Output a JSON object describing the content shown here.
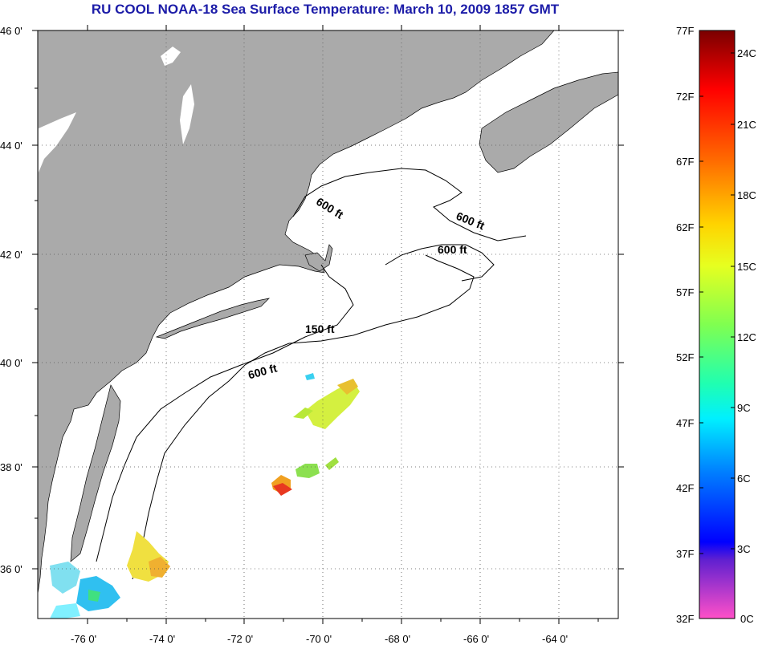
{
  "title": "RU COOL  NOAA-18  Sea Surface Temperature:  March 10, 2009 1857 GMT",
  "map": {
    "lat_labels": [
      "46 0'",
      "44 0'",
      "42 0'",
      "40 0'",
      "38 0'",
      "36 0'"
    ],
    "lon_labels": [
      "-76 0'",
      "-74 0'",
      "-72 0'",
      "-70 0'",
      "-68 0'",
      "-66 0'",
      "-64 0'"
    ],
    "contour_labels": [
      "600 ft",
      "600 ft",
      "600 ft",
      "150 ft",
      "600 ft"
    ],
    "colors": {
      "land": "#aaaaaa",
      "ocean": "#ffffff",
      "grid": "#555555"
    }
  },
  "colorbar": {
    "f_labels": [
      "77F",
      "72F",
      "67F",
      "62F",
      "57F",
      "52F",
      "47F",
      "42F",
      "37F",
      "32F"
    ],
    "c_labels": [
      "24C",
      "21C",
      "18C",
      "15C",
      "12C",
      "9C",
      "6C",
      "3C",
      "0C"
    ]
  }
}
